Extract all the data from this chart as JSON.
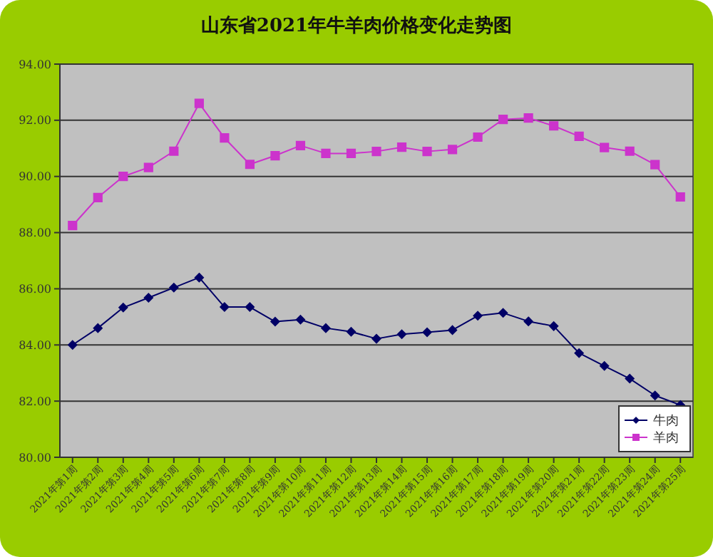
{
  "chart_data": {
    "type": "line",
    "title": "山东省2021年牛羊肉价格变化走势图",
    "categories": [
      "2021年第1周",
      "2021年第2周",
      "2021年第3周",
      "2021年第4周",
      "2021年第5周",
      "2021年第6周",
      "2021年第7周",
      "2021年第8周",
      "2021年第9周",
      "2021年第10周",
      "2021年第11周",
      "2021年第12周",
      "2021年第13周",
      "2021年第14周",
      "2021年第15周",
      "2021年第16周",
      "2021年第17周",
      "2021年第18周",
      "2021年第19周",
      "2021年第20周",
      "2021年第21周",
      "2021年第22周",
      "2021年第23周",
      "2021年第24周",
      "2021年第25周"
    ],
    "series": [
      {
        "name": "牛肉",
        "color": "#000066",
        "marker": "diamond",
        "values": [
          84.0,
          84.6,
          85.33,
          85.68,
          86.04,
          86.4,
          85.35,
          85.35,
          84.83,
          84.9,
          84.6,
          84.47,
          84.22,
          84.38,
          84.45,
          84.53,
          85.04,
          85.14,
          84.84,
          84.67,
          83.71,
          83.25,
          82.8,
          82.2,
          81.86
        ]
      },
      {
        "name": "羊肉",
        "color": "#cc33cc",
        "marker": "square",
        "values": [
          88.25,
          89.25,
          90.0,
          90.32,
          90.9,
          92.6,
          91.37,
          90.43,
          90.74,
          91.1,
          90.82,
          90.82,
          90.89,
          91.04,
          90.89,
          90.96,
          91.4,
          92.03,
          92.08,
          91.8,
          91.43,
          91.03,
          90.9,
          90.42,
          89.27
        ]
      }
    ],
    "ylim": [
      80,
      94
    ],
    "yticks": [
      {
        "value": 80,
        "label": "80.00"
      },
      {
        "value": 82,
        "label": "82.00"
      },
      {
        "value": 84,
        "label": "84.00"
      },
      {
        "value": 86,
        "label": "86.00"
      },
      {
        "value": 88,
        "label": "88.00"
      },
      {
        "value": 90,
        "label": "90.00"
      },
      {
        "value": 92,
        "label": "92.00"
      },
      {
        "value": 94,
        "label": "94.00"
      }
    ],
    "grid": "y",
    "legend": "bottom right"
  }
}
